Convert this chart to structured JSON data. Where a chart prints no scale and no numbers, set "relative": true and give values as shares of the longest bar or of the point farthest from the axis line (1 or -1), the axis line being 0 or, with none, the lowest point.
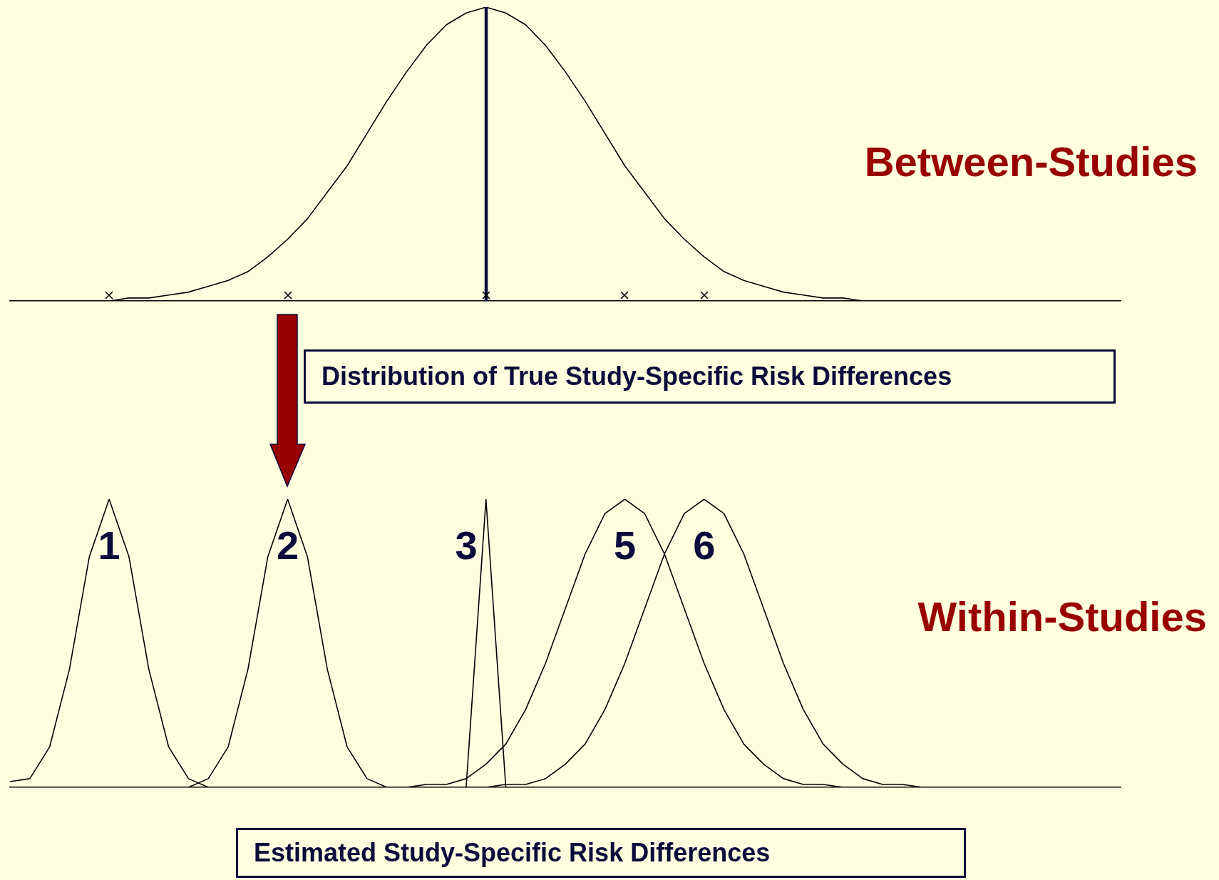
{
  "chart_data": [
    {
      "type": "line",
      "title": "Between-Studies",
      "xlabel": "Distribution of True Study-Specific Risk Differences",
      "relative": true,
      "tick_labels": false,
      "grid": false,
      "marker": "none",
      "categories": [
        null,
        null,
        null,
        null,
        null,
        null,
        null,
        null,
        null,
        null,
        null,
        null,
        null,
        null,
        null,
        null,
        null,
        null,
        null,
        null,
        null,
        null,
        null,
        null,
        null,
        null,
        null,
        null,
        null,
        null,
        null,
        null,
        null,
        null,
        null,
        null,
        null,
        null,
        null,
        null,
        null,
        null,
        null,
        null,
        null,
        null,
        null,
        null,
        null,
        null,
        null,
        null,
        null,
        null,
        null,
        null,
        null
      ],
      "series": [
        {
          "color": "#000000",
          "values": [
            0,
            0,
            0,
            0,
            0,
            0,
            0.01,
            0.01,
            0.02,
            0.03,
            0.05,
            0.07,
            0.1,
            0.15,
            0.21,
            0.28,
            0.37,
            0.46,
            0.57,
            0.68,
            0.78,
            0.87,
            0.94,
            0.98,
            1,
            0.98,
            0.94,
            0.87,
            0.78,
            0.68,
            0.57,
            0.46,
            0.37,
            0.28,
            0.21,
            0.15,
            0.1,
            0.07,
            0.05,
            0.03,
            0.02,
            0.01,
            0.01,
            0,
            0,
            0,
            0,
            0,
            0,
            0,
            0,
            0,
            0,
            0,
            0,
            0,
            0
          ]
        }
      ]
    },
    {
      "type": "line",
      "title": "Within-Studies",
      "xlabel": "Estimated Study-Specific Risk Differences",
      "relative": true,
      "tick_labels": false,
      "grid": false,
      "marker": "none",
      "categories": [
        null,
        null,
        null,
        null,
        null,
        null,
        null,
        null,
        null,
        null,
        null,
        null,
        null,
        null,
        null,
        null,
        null,
        null,
        null,
        null,
        null,
        null,
        null,
        null,
        null,
        null,
        null,
        null,
        null,
        null,
        null,
        null,
        null,
        null,
        null,
        null,
        null,
        null,
        null,
        null,
        null,
        null,
        null,
        null,
        null,
        null,
        null,
        null,
        null,
        null,
        null,
        null,
        null,
        null,
        null,
        null,
        null
      ],
      "series": [
        {
          "name": "1",
          "color": "#000000",
          "values": [
            0.02,
            0.03,
            0.14,
            0.41,
            0.8,
            1,
            0.8,
            0.41,
            0.14,
            0.03,
            0,
            0,
            null,
            null,
            null,
            null,
            null,
            null,
            null,
            null,
            null,
            null,
            null,
            null,
            null,
            null,
            null,
            null,
            null,
            null,
            null,
            null,
            null,
            null,
            null,
            null,
            null,
            null,
            null,
            null,
            null,
            null,
            null,
            null,
            null,
            null,
            null,
            null,
            null,
            null,
            null,
            null,
            null,
            null,
            null,
            null,
            null
          ]
        },
        {
          "name": "2",
          "color": "#000000",
          "values": [
            null,
            null,
            null,
            null,
            null,
            null,
            null,
            null,
            null,
            0,
            0.03,
            0.14,
            0.41,
            0.8,
            1,
            0.8,
            0.41,
            0.14,
            0.03,
            0,
            null,
            null,
            null,
            null,
            null,
            null,
            null,
            null,
            null,
            null,
            null,
            null,
            null,
            null,
            null,
            null,
            null,
            null,
            null,
            null,
            null,
            null,
            null,
            null,
            null,
            null,
            null,
            null,
            null,
            null,
            null,
            null,
            null,
            null,
            null,
            null,
            null
          ]
        },
        {
          "name": "3",
          "color": "#000000",
          "values": [
            null,
            null,
            null,
            null,
            null,
            null,
            null,
            null,
            null,
            null,
            null,
            null,
            null,
            null,
            null,
            null,
            null,
            null,
            null,
            null,
            null,
            null,
            null,
            0,
            1,
            0,
            null,
            null,
            null,
            null,
            null,
            null,
            null,
            null,
            null,
            null,
            null,
            null,
            null,
            null,
            null,
            null,
            null,
            null,
            null,
            null,
            null,
            null,
            null,
            null,
            null,
            null,
            null,
            null,
            null,
            null,
            null
          ]
        },
        {
          "name": "5",
          "color": "#000000",
          "values": [
            null,
            null,
            null,
            null,
            null,
            null,
            null,
            null,
            null,
            null,
            null,
            null,
            null,
            null,
            null,
            null,
            null,
            null,
            null,
            null,
            0,
            0.01,
            0.01,
            0.03,
            0.08,
            0.15,
            0.27,
            0.43,
            0.62,
            0.81,
            0.95,
            1,
            0.95,
            0.81,
            0.62,
            0.43,
            0.27,
            0.15,
            0.08,
            0.03,
            0.01,
            0.01,
            0,
            null,
            null,
            null,
            null,
            null,
            null,
            null,
            null,
            null,
            null,
            null,
            null,
            null,
            null
          ]
        },
        {
          "name": "6",
          "color": "#000000",
          "values": [
            null,
            null,
            null,
            null,
            null,
            null,
            null,
            null,
            null,
            null,
            null,
            null,
            null,
            null,
            null,
            null,
            null,
            null,
            null,
            null,
            null,
            null,
            null,
            null,
            0,
            0.01,
            0.01,
            0.03,
            0.08,
            0.15,
            0.27,
            0.43,
            0.62,
            0.81,
            0.95,
            1,
            0.95,
            0.81,
            0.62,
            0.43,
            0.27,
            0.15,
            0.08,
            0.03,
            0.01,
            0.01,
            0,
            null,
            null,
            null,
            null,
            null,
            null,
            null,
            null,
            null,
            null
          ]
        }
      ]
    }
  ]
}
